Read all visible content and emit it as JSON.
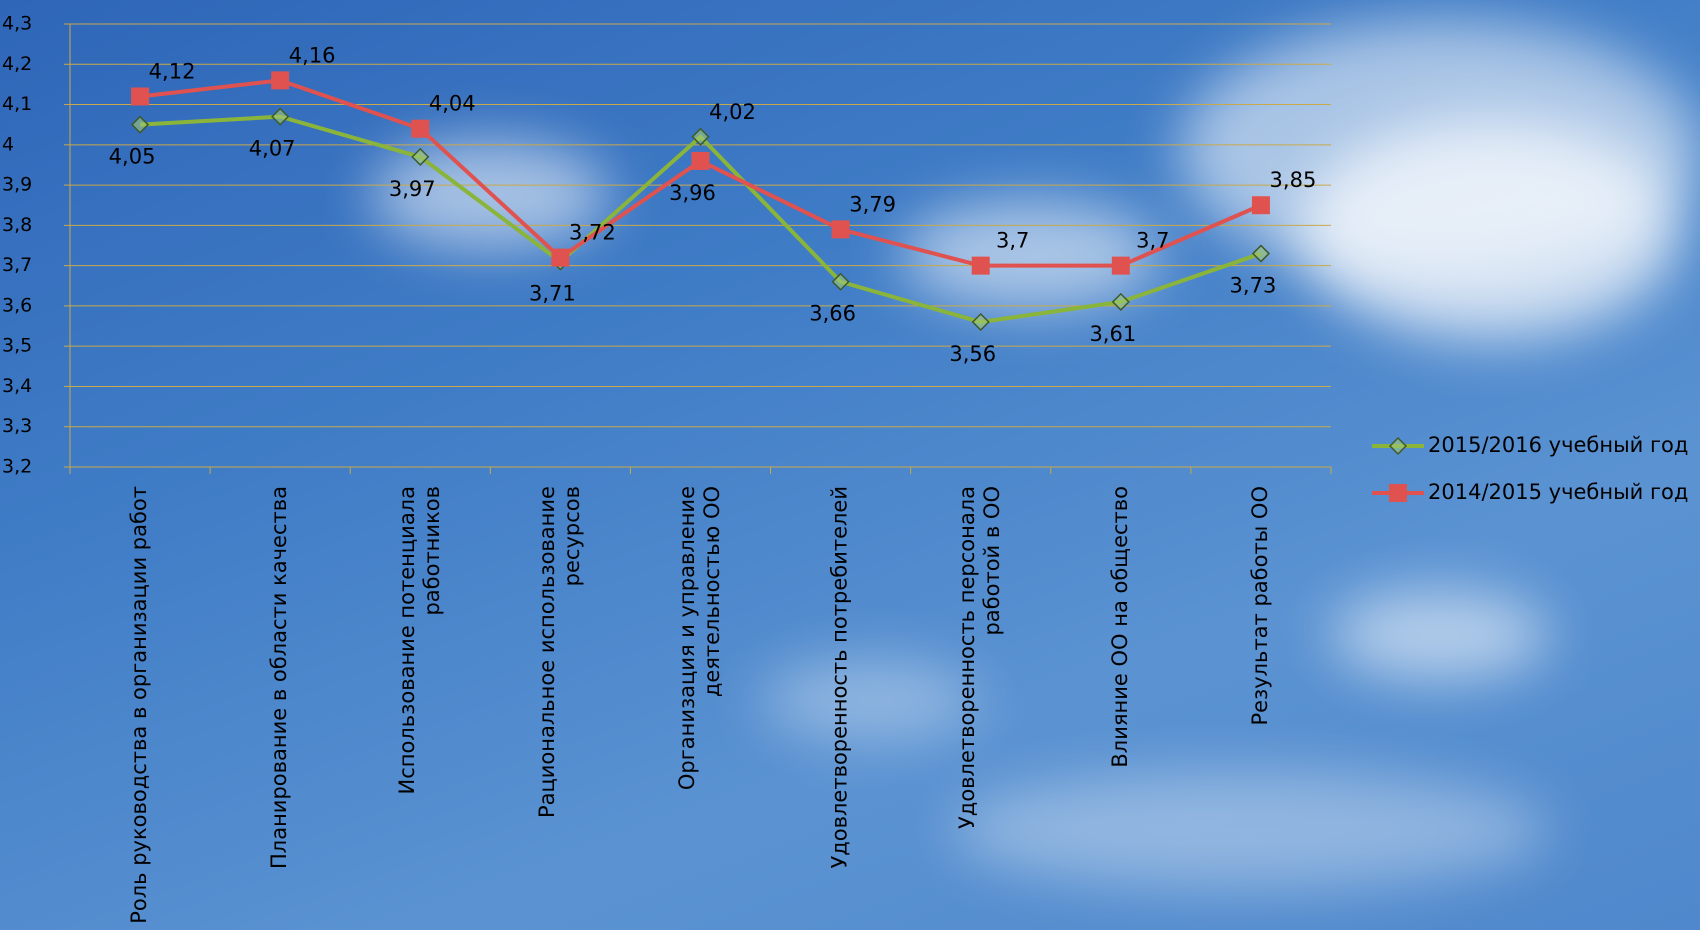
{
  "chart_data": {
    "type": "line",
    "categories": [
      [
        "Роль руководства в организации работ"
      ],
      [
        "Планирование в области качества"
      ],
      [
        "Использование потенциала",
        "работников"
      ],
      [
        "Рациональное использование",
        "ресурсов"
      ],
      [
        "Организация и управление",
        "деятельностью ОО"
      ],
      [
        "Удовлетворенность потребителей"
      ],
      [
        "Удовлетворенность персонала",
        "работой в ОО"
      ],
      [
        "Влияние ОО на общество"
      ],
      [
        "Результат работы ОО"
      ]
    ],
    "series": [
      {
        "name": "2015/2016 учебный год",
        "color": "#8ab53a",
        "marker": "diamond",
        "values": [
          4.05,
          4.07,
          3.97,
          3.71,
          4.02,
          3.66,
          3.56,
          3.61,
          3.73
        ],
        "value_labels": [
          "4,05",
          "4,07",
          "3,97",
          "3,71",
          "4,02",
          "3,66",
          "3,56",
          "3,61",
          "3,73"
        ]
      },
      {
        "name": "2014/2015 учебный год",
        "color": "#e0524f",
        "marker": "square",
        "values": [
          4.12,
          4.16,
          4.04,
          3.72,
          3.96,
          3.79,
          3.7,
          3.7,
          3.85
        ],
        "value_labels": [
          "4,12",
          "4,16",
          "4,04",
          "3,72",
          "3,96",
          "3,79",
          "3,7",
          "3,7",
          "3,85"
        ]
      }
    ],
    "ylim": [
      3.2,
      4.3
    ],
    "yticks": [
      {
        "value": 3.2,
        "label": "3,2"
      },
      {
        "value": 3.3,
        "label": "3,3"
      },
      {
        "value": 3.4,
        "label": "3,4"
      },
      {
        "value": 3.5,
        "label": "3,5"
      },
      {
        "value": 3.6,
        "label": "3,6"
      },
      {
        "value": 3.7,
        "label": "3,7"
      },
      {
        "value": 3.8,
        "label": "3,8"
      },
      {
        "value": 3.9,
        "label": "3,9"
      },
      4,
      {
        "value": 4.1,
        "label": "4,1"
      },
      {
        "value": 4.2,
        "label": "4,2"
      },
      {
        "value": 4.3,
        "label": "4,3"
      }
    ],
    "grid": true,
    "legend": "right"
  }
}
